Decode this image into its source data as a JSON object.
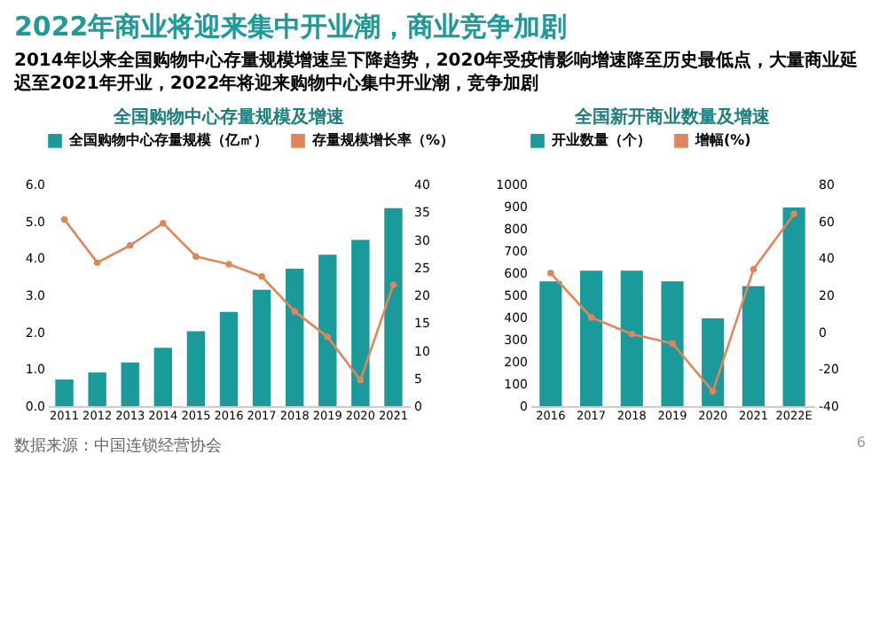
{
  "chart_data": [
    {
      "type": "other",
      "title": "2022年商业将迎来集中开业潮，商业竞争加剧",
      "subtitle": "2014年以来全国购物中心存量规模增速呈下降趋势，2020年受疫情影响增速降至历史最低点，大量商业延迟至2021年开业，2022年将迎来购物中心集中开业潮，竞争加剧",
      "annotations": [
        "数据来源：中国连锁经营协会"
      ]
    },
    {
      "type": "bar",
      "title": "全国购物中心存量规模及增速",
      "categories": [
        "2011",
        "2012",
        "2013",
        "2014",
        "2015",
        "2016",
        "2017",
        "2018",
        "2019",
        "2020",
        "2021"
      ],
      "series": [
        {
          "name": "全国购物中心存量规模（亿㎡）",
          "color": "#1a9a9a",
          "values": [
            0.72,
            0.91,
            1.18,
            1.58,
            2.03,
            2.55,
            3.15,
            3.72,
            4.1,
            4.5,
            5.36
          ]
        },
        {
          "name": "存量规模增长率（%）",
          "type": "line",
          "axis": "y2",
          "color": "#e0865a",
          "values": [
            33.7,
            25.9,
            29,
            33,
            27,
            25.6,
            23.4,
            17.1,
            12.5,
            4.7,
            21.9
          ]
        }
      ],
      "ylim": [
        0,
        6
      ],
      "yticks": [
        {
          "value": 0,
          "label": "0.0"
        },
        {
          "value": 1,
          "label": "1.0"
        },
        {
          "value": 2,
          "label": "2.0"
        },
        {
          "value": 3,
          "label": "3.0"
        },
        {
          "value": 4,
          "label": "4.0"
        },
        {
          "value": 5,
          "label": "5.0"
        },
        {
          "value": 6,
          "label": "6.0"
        }
      ],
      "y2lim": [
        0,
        40
      ],
      "y2ticks": [
        0,
        5,
        10,
        15,
        20,
        25,
        30,
        35,
        40
      ],
      "legend": "top",
      "marker": "circle"
    },
    {
      "type": "bar",
      "title": "全国新开商业数量及增速",
      "categories": [
        "2016",
        "2017",
        "2018",
        "2019",
        "2020",
        "2021",
        "2022E"
      ],
      "series": [
        {
          "name": "开业数量（个）",
          "color": "#1a9a9a",
          "values": [
            563,
            611,
            611,
            563,
            396,
            541,
            896
          ]
        },
        {
          "name": "增幅(%)",
          "type": "line",
          "axis": "y2",
          "color": "#e0865a",
          "values": [
            32,
            8,
            -1,
            -6,
            -32,
            34,
            64
          ]
        }
      ],
      "ylim": [
        0,
        1000
      ],
      "yticks": [
        0,
        100,
        200,
        300,
        400,
        500,
        600,
        700,
        800,
        900,
        1000
      ],
      "y2lim": [
        -40,
        80
      ],
      "y2ticks": [
        -40,
        -20,
        0,
        20,
        40,
        60,
        80
      ],
      "legend": "top",
      "marker": "circle",
      "annotations": [
        "6"
      ]
    }
  ]
}
